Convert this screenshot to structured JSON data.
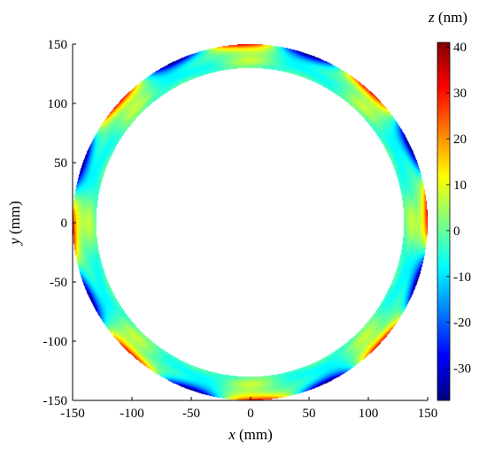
{
  "chart_data": {
    "type": "heatmap",
    "title": "",
    "xlabel": {
      "var": "x",
      "unit": " (mm)"
    },
    "ylabel": {
      "var": "y",
      "unit": " (mm)"
    },
    "xlim": [
      -150,
      150
    ],
    "ylim": [
      -150,
      150
    ],
    "x_ticks": [
      "-150",
      "-100",
      "-50",
      "0",
      "50",
      "100",
      "150"
    ],
    "y_ticks": [
      "150",
      "100",
      "50",
      "0",
      "-50",
      "-100",
      "-150"
    ],
    "grid": false,
    "annulus": {
      "inner_radius_mm": 130,
      "outer_radius_mm": 150
    },
    "colorbar": {
      "label": {
        "var": "z",
        "unit": " (nm)"
      },
      "range": [
        -37,
        41
      ],
      "ticks": [
        "40",
        "30",
        "20",
        "10",
        "0",
        "-10",
        "-20",
        "-30"
      ],
      "colormap": "jet"
    },
    "surface_features": {
      "edge_lobes": 8,
      "edge_lobe_phase_deg": 22.5,
      "edge_amplitude_nm": 38,
      "edge_width_mm": 4.5,
      "mid_lobes": 8,
      "mid_amplitude_nm": 6,
      "mid_radius_mm": 136,
      "background_nm": -2
    }
  }
}
